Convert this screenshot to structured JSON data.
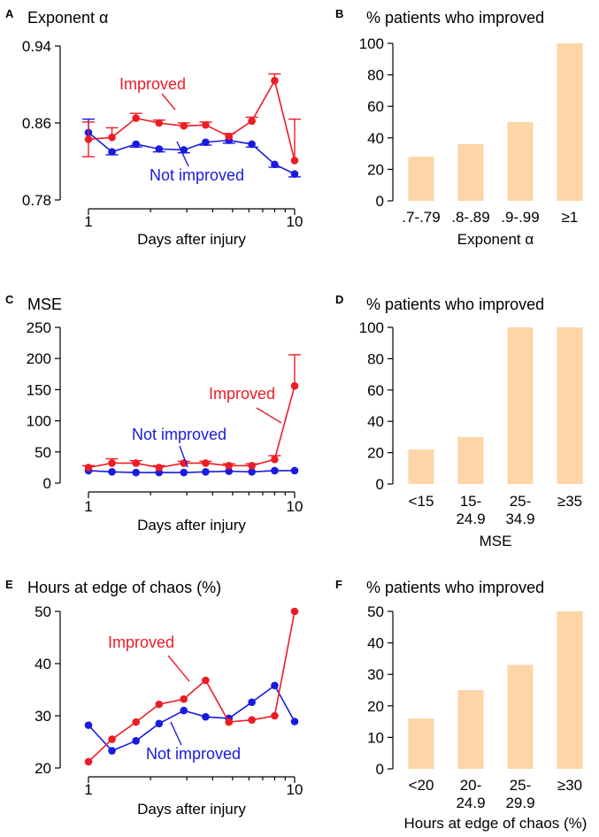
{
  "colors": {
    "improved": "#ee1c24",
    "not_improved": "#1a1adf",
    "bar": "#fdd5a6",
    "axis": "#000000"
  },
  "chart_data": [
    {
      "id": "A",
      "panel_label": "A",
      "type": "line",
      "title": "Exponent α",
      "xlabel": "Days after injury",
      "xscale": "log",
      "xlim": [
        1,
        10
      ],
      "xticks": [
        "1",
        "10"
      ],
      "ylim": [
        0.78,
        0.94
      ],
      "yticks": [
        "0.78",
        "0.86",
        "0.94"
      ],
      "x": [
        1,
        1.3,
        1.7,
        2.2,
        2.9,
        3.7,
        4.8,
        6.2,
        8,
        10
      ],
      "series": [
        {
          "name": "Improved",
          "color_key": "improved",
          "values": [
            0.843,
            0.845,
            0.865,
            0.86,
            0.857,
            0.858,
            0.846,
            0.862,
            0.904,
            0.821
          ],
          "error_up": [
            0.018,
            0.01,
            0.005,
            0.003,
            0.003,
            0.003,
            0.003,
            0.004,
            0.007,
            0.043
          ],
          "error_down": [
            0.018,
            0,
            0,
            0,
            0,
            0,
            0,
            0,
            0,
            0
          ]
        },
        {
          "name": "Not improved",
          "color_key": "not_improved",
          "values": [
            0.85,
            0.83,
            0.838,
            0.833,
            0.832,
            0.84,
            0.842,
            0.838,
            0.817,
            0.807
          ],
          "error_up": [
            0.014,
            0,
            0,
            0,
            0,
            0,
            0,
            0,
            0,
            0
          ],
          "error_down": [
            0,
            0.003,
            0.003,
            0.003,
            0.003,
            0.003,
            0.003,
            0.003,
            0.003,
            0.003
          ]
        }
      ]
    },
    {
      "id": "B",
      "panel_label": "B",
      "type": "bar",
      "title": "% patients who improved",
      "xlabel": "Exponent α",
      "ylim": [
        0,
        100
      ],
      "yticks": [
        "0",
        "20",
        "40",
        "60",
        "80",
        "100"
      ],
      "categories": [
        ".7-.79",
        ".8-.89",
        ".9-.99",
        "≥1"
      ],
      "values": [
        28,
        36,
        50,
        100
      ]
    },
    {
      "id": "C",
      "panel_label": "C",
      "type": "line",
      "title": "MSE",
      "xlabel": "Days after injury",
      "xscale": "log",
      "xlim": [
        1,
        10
      ],
      "xticks": [
        "1",
        "10"
      ],
      "ylim": [
        0,
        250
      ],
      "yticks": [
        "0",
        "50",
        "100",
        "150",
        "200",
        "250"
      ],
      "x": [
        1,
        1.3,
        1.7,
        2.2,
        2.9,
        3.7,
        4.8,
        6.2,
        8,
        10
      ],
      "series": [
        {
          "name": "Improved",
          "color_key": "improved",
          "values": [
            25,
            32,
            32,
            25,
            32,
            32,
            28,
            28,
            38,
            156
          ],
          "error_up": [
            3,
            7,
            4,
            3,
            3,
            3,
            3,
            3,
            6,
            50
          ],
          "error_down": [
            0,
            0,
            0,
            0,
            0,
            0,
            0,
            0,
            0,
            0
          ]
        },
        {
          "name": "Not improved",
          "color_key": "not_improved",
          "values": [
            20,
            18,
            17,
            17,
            17,
            18,
            19,
            18,
            20,
            20
          ],
          "error_up": [
            0,
            0,
            0,
            0,
            0,
            0,
            0,
            0,
            0,
            0
          ],
          "error_down": [
            0,
            0,
            0,
            0,
            0,
            0,
            0,
            0,
            0,
            0
          ]
        }
      ]
    },
    {
      "id": "D",
      "panel_label": "D",
      "type": "bar",
      "title": "% patients who improved",
      "xlabel": "MSE",
      "ylim": [
        0,
        100
      ],
      "yticks": [
        "0",
        "20",
        "40",
        "60",
        "80",
        "100"
      ],
      "categories": [
        "<15",
        "15-\n24.9",
        "25-\n34.9",
        "≥35"
      ],
      "values": [
        22,
        30,
        100,
        100
      ]
    },
    {
      "id": "E",
      "panel_label": "E",
      "type": "line",
      "title": "Hours at edge of chaos (%)",
      "xlabel": "Days after injury",
      "xscale": "log",
      "xlim": [
        1,
        10
      ],
      "xticks": [
        "1",
        "10"
      ],
      "ylim": [
        20,
        50
      ],
      "yticks": [
        "20",
        "30",
        "40",
        "50"
      ],
      "x": [
        1,
        1.3,
        1.7,
        2.2,
        2.9,
        3.7,
        4.8,
        6.2,
        8,
        10
      ],
      "series": [
        {
          "name": "Improved",
          "color_key": "improved",
          "values": [
            21.2,
            25.5,
            28.8,
            32.2,
            33.2,
            36.8,
            28.8,
            29.2,
            30,
            50
          ],
          "error_up": [
            0,
            0,
            0,
            0,
            0,
            0,
            0,
            0,
            0,
            0
          ],
          "error_down": [
            0,
            0,
            0,
            0,
            0,
            0,
            0,
            0,
            0,
            0
          ]
        },
        {
          "name": "Not improved",
          "color_key": "not_improved",
          "values": [
            28.2,
            23.3,
            25.2,
            28.5,
            31,
            29.8,
            29.5,
            32.6,
            35.8,
            28.9
          ],
          "error_up": [
            0,
            0,
            0,
            0,
            0,
            0,
            0,
            0,
            0,
            0
          ],
          "error_down": [
            0,
            0,
            0,
            0,
            0,
            0,
            0,
            0,
            0,
            0
          ]
        }
      ]
    },
    {
      "id": "F",
      "panel_label": "F",
      "type": "bar",
      "title": "% patients who improved",
      "xlabel": "Hours at edge of chaos (%)",
      "ylim": [
        0,
        50
      ],
      "yticks": [
        "0",
        "10",
        "20",
        "30",
        "40",
        "50"
      ],
      "categories": [
        "<20",
        "20-\n24.9",
        "25-\n29.9",
        "≥30"
      ],
      "values": [
        16,
        25,
        33,
        50
      ]
    }
  ]
}
